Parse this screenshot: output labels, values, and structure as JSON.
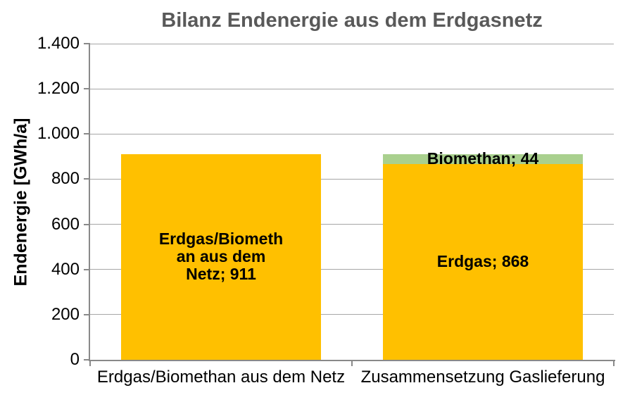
{
  "chart_data": {
    "type": "bar",
    "stacked": true,
    "title": "Bilanz Endenergie aus dem Erdgasnetz",
    "ylabel": "Endenergie [GWh/a]",
    "xlabel": "",
    "grid": true,
    "legend_position": "none",
    "categories": [
      "Erdgas/Biomethan aus dem Netz",
      "Zusammensetzung Gaslieferung"
    ],
    "y_axis": {
      "min": 0,
      "max": 1400,
      "step": 200,
      "tick_labels": [
        "0",
        "200",
        "400",
        "600",
        "800",
        "1.000",
        "1.200",
        "1.400"
      ]
    },
    "bars": [
      {
        "category": "Erdgas/Biomethan aus dem Netz",
        "segments": [
          {
            "name": "Erdgas/Biomethan aus dem Netz",
            "value": 911,
            "color": "#FFC000",
            "label_lines": [
              "Erdgas/Biometh",
              "an aus dem",
              "Netz; 911"
            ]
          }
        ]
      },
      {
        "category": "Zusammensetzung Gaslieferung",
        "segments": [
          {
            "name": "Erdgas",
            "value": 868,
            "color": "#FFC000",
            "label_lines": [
              "Erdgas; 868"
            ]
          },
          {
            "name": "Biomethan",
            "value": 44,
            "color": "#A9D08E",
            "label_lines": [
              "Biomethan; 44"
            ]
          }
        ]
      }
    ],
    "colors": {
      "erdgas": "#FFC000",
      "biomethan": "#A9D08E",
      "title_text": "#595959",
      "axis_line": "#898989",
      "gridline": "#A6A6A6",
      "label_text": "#000000",
      "background": "#FFFFFF"
    }
  }
}
